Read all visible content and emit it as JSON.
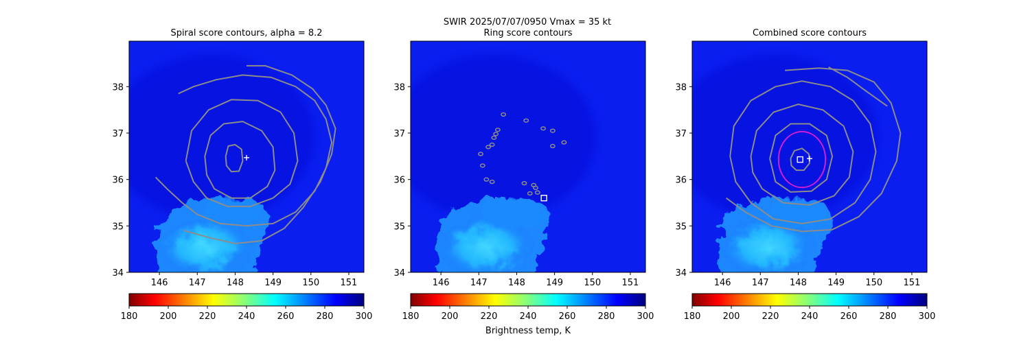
{
  "figure": {
    "suptitle_line1": "SWIR  2025/07/07/0950    Vmax = 35 kt",
    "colorbar_label": "Brightness temp, K"
  },
  "colors": {
    "background_field": "#0a1ef0",
    "background_deep": "#0000c8",
    "cloud_mid": "#1e8cff",
    "cloud_bright": "#28c8ff",
    "contour": "#8c8c8c",
    "ring": "#d21ed2",
    "marker": "#ffffff"
  },
  "chart_data": [
    {
      "type": "heatmap",
      "title": "Spiral score contours, alpha =  8.2",
      "xlim": [
        145.2,
        151.4
      ],
      "ylim": [
        34.0,
        38.98
      ],
      "xticks": [
        146,
        147,
        148,
        149,
        150,
        151
      ],
      "yticks": [
        34,
        35,
        36,
        37,
        38
      ],
      "center_marker": {
        "shape": "plus",
        "lon": 148.3,
        "lat": 36.47
      },
      "contours": [
        {
          "level": 1,
          "points": [
            [
              147.75,
              36.5
            ],
            [
              147.82,
              36.72
            ],
            [
              148.0,
              36.75
            ],
            [
              148.17,
              36.65
            ],
            [
              148.2,
              36.4
            ],
            [
              148.1,
              36.18
            ],
            [
              147.9,
              36.17
            ],
            [
              147.77,
              36.3
            ],
            [
              147.75,
              36.5
            ]
          ]
        },
        {
          "level": 2,
          "points": [
            [
              147.2,
              36.5
            ],
            [
              147.35,
              36.95
            ],
            [
              147.7,
              37.2
            ],
            [
              148.2,
              37.25
            ],
            [
              148.7,
              37.05
            ],
            [
              149.0,
              36.7
            ],
            [
              149.05,
              36.2
            ],
            [
              148.85,
              35.85
            ],
            [
              148.4,
              35.6
            ],
            [
              147.9,
              35.6
            ],
            [
              147.45,
              35.8
            ],
            [
              147.25,
              36.1
            ],
            [
              147.2,
              36.5
            ]
          ]
        },
        {
          "level": 3,
          "points": [
            [
              146.7,
              36.4
            ],
            [
              146.85,
              37.05
            ],
            [
              147.3,
              37.5
            ],
            [
              147.9,
              37.72
            ],
            [
              148.6,
              37.7
            ],
            [
              149.2,
              37.45
            ],
            [
              149.55,
              37.0
            ],
            [
              149.65,
              36.4
            ],
            [
              149.45,
              35.9
            ],
            [
              149.0,
              35.6
            ],
            [
              148.4,
              35.42
            ],
            [
              147.8,
              35.42
            ],
            [
              147.25,
              35.6
            ],
            [
              146.9,
              35.95
            ],
            [
              146.7,
              36.4
            ]
          ]
        },
        {
          "level": 4,
          "points": [
            [
              145.9,
              36.05
            ],
            [
              146.2,
              35.8
            ],
            [
              146.6,
              35.5
            ],
            [
              147.0,
              35.25
            ],
            [
              147.6,
              35.05
            ],
            [
              148.3,
              35.0
            ],
            [
              149.0,
              35.05
            ],
            [
              149.6,
              35.3
            ],
            [
              150.1,
              35.75
            ],
            [
              150.4,
              36.25
            ],
            [
              150.55,
              36.8
            ],
            [
              150.4,
              37.3
            ],
            [
              150.1,
              37.7
            ],
            [
              149.6,
              38.0
            ],
            [
              148.95,
              38.2
            ],
            [
              148.2,
              38.25
            ],
            [
              147.5,
              38.15
            ],
            [
              146.9,
              38.0
            ],
            [
              146.5,
              37.85
            ]
          ]
        },
        {
          "level": 5,
          "points": [
            [
              146.65,
              34.9
            ],
            [
              147.3,
              34.75
            ],
            [
              148.0,
              34.62
            ],
            [
              148.7,
              34.68
            ],
            [
              149.3,
              34.95
            ],
            [
              149.8,
              35.4
            ],
            [
              150.25,
              35.95
            ],
            [
              150.55,
              36.55
            ],
            [
              150.65,
              37.1
            ],
            [
              150.4,
              37.6
            ],
            [
              150.05,
              37.95
            ],
            [
              149.5,
              38.25
            ],
            [
              148.8,
              38.45
            ],
            [
              148.3,
              38.45
            ]
          ]
        }
      ]
    },
    {
      "type": "heatmap",
      "title": "Ring score contours",
      "xlim": [
        145.2,
        151.4
      ],
      "ylim": [
        34.0,
        38.98
      ],
      "xticks": [
        146,
        147,
        148,
        149,
        150,
        151
      ],
      "yticks": [
        34,
        35,
        36,
        37,
        38
      ],
      "center_marker": {
        "shape": "square",
        "lon": 148.72,
        "lat": 35.6
      },
      "contour_blobs": [
        {
          "lon": 147.65,
          "lat": 37.4
        },
        {
          "lon": 147.5,
          "lat": 37.07
        },
        {
          "lon": 147.45,
          "lat": 36.98
        },
        {
          "lon": 147.4,
          "lat": 36.9
        },
        {
          "lon": 147.35,
          "lat": 36.75
        },
        {
          "lon": 147.25,
          "lat": 36.7
        },
        {
          "lon": 148.25,
          "lat": 37.27
        },
        {
          "lon": 148.7,
          "lat": 37.1
        },
        {
          "lon": 148.95,
          "lat": 37.05
        },
        {
          "lon": 149.25,
          "lat": 36.8
        },
        {
          "lon": 148.95,
          "lat": 36.72
        },
        {
          "lon": 147.05,
          "lat": 36.55
        },
        {
          "lon": 147.1,
          "lat": 36.3
        },
        {
          "lon": 147.2,
          "lat": 36.0
        },
        {
          "lon": 147.35,
          "lat": 35.95
        },
        {
          "lon": 148.2,
          "lat": 35.92
        },
        {
          "lon": 148.45,
          "lat": 35.88
        },
        {
          "lon": 148.5,
          "lat": 35.82
        },
        {
          "lon": 148.35,
          "lat": 35.7
        },
        {
          "lon": 148.55,
          "lat": 35.72
        }
      ]
    },
    {
      "type": "heatmap",
      "title": "Combined score contours",
      "xlim": [
        145.2,
        151.4
      ],
      "ylim": [
        34.0,
        38.98
      ],
      "xticks": [
        146,
        147,
        148,
        149,
        150,
        151
      ],
      "yticks": [
        34,
        35,
        36,
        37,
        38
      ],
      "center_marker": {
        "shape": "plus",
        "lon": 148.3,
        "lat": 36.45
      },
      "square_marker": {
        "lon": 148.05,
        "lat": 36.43
      },
      "ring": {
        "lon": 148.1,
        "lat": 36.43,
        "radius_deg": 0.62
      },
      "contours": [
        {
          "level": 1,
          "points": [
            [
              147.8,
              36.45
            ],
            [
              147.9,
              36.62
            ],
            [
              148.1,
              36.67
            ],
            [
              148.28,
              36.55
            ],
            [
              148.3,
              36.35
            ],
            [
              148.15,
              36.2
            ],
            [
              147.95,
              36.2
            ],
            [
              147.82,
              36.3
            ],
            [
              147.8,
              36.45
            ]
          ]
        },
        {
          "level": 2,
          "points": [
            [
              147.25,
              36.45
            ],
            [
              147.4,
              36.95
            ],
            [
              147.8,
              37.2
            ],
            [
              148.3,
              37.2
            ],
            [
              148.75,
              36.95
            ],
            [
              148.9,
              36.5
            ],
            [
              148.75,
              36.0
            ],
            [
              148.35,
              35.75
            ],
            [
              147.8,
              35.73
            ],
            [
              147.4,
              35.95
            ],
            [
              147.25,
              36.45
            ]
          ]
        },
        {
          "level": 3,
          "points": [
            [
              146.75,
              36.5
            ],
            [
              146.9,
              37.05
            ],
            [
              147.35,
              37.45
            ],
            [
              148.0,
              37.62
            ],
            [
              148.65,
              37.5
            ],
            [
              149.2,
              37.15
            ],
            [
              149.45,
              36.6
            ],
            [
              149.35,
              36.05
            ],
            [
              148.95,
              35.65
            ],
            [
              148.3,
              35.45
            ],
            [
              147.6,
              35.5
            ],
            [
              147.05,
              35.8
            ],
            [
              146.8,
              36.15
            ],
            [
              146.75,
              36.5
            ]
          ]
        },
        {
          "level": 4,
          "points": [
            [
              146.2,
              36.5
            ],
            [
              146.3,
              37.15
            ],
            [
              146.75,
              37.7
            ],
            [
              147.4,
              38.0
            ],
            [
              148.1,
              38.12
            ],
            [
              148.85,
              38.0
            ],
            [
              149.45,
              37.7
            ],
            [
              149.9,
              37.2
            ],
            [
              150.05,
              36.6
            ],
            [
              149.9,
              36.0
            ],
            [
              149.5,
              35.5
            ],
            [
              148.85,
              35.15
            ],
            [
              148.1,
              35.05
            ],
            [
              147.35,
              35.15
            ],
            [
              146.75,
              35.5
            ],
            [
              146.35,
              35.95
            ],
            [
              146.2,
              36.5
            ]
          ]
        },
        {
          "level": 5,
          "points": [
            [
              146.1,
              35.6
            ],
            [
              146.6,
              35.3
            ],
            [
              147.3,
              35.0
            ],
            [
              148.1,
              34.88
            ],
            [
              148.9,
              34.92
            ],
            [
              149.6,
              35.2
            ],
            [
              150.2,
              35.7
            ],
            [
              150.6,
              36.4
            ],
            [
              150.7,
              37.0
            ],
            [
              150.45,
              37.65
            ],
            [
              150.0,
              38.1
            ],
            [
              149.3,
              38.35
            ],
            [
              148.55,
              38.4
            ],
            [
              147.65,
              38.35
            ]
          ]
        },
        {
          "level": 6,
          "points": [
            [
              148.8,
              38.42
            ],
            [
              149.3,
              38.2
            ],
            [
              149.8,
              37.9
            ],
            [
              150.35,
              37.58
            ]
          ]
        }
      ]
    }
  ],
  "colorbar": {
    "cmap": "jet_r",
    "vmin": 180,
    "vmax": 300,
    "ticks": [
      180,
      200,
      220,
      240,
      260,
      280,
      300
    ]
  }
}
